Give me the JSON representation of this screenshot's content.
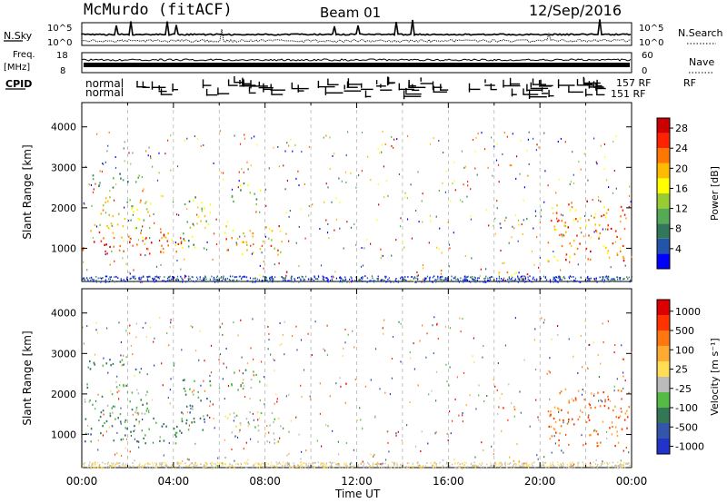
{
  "header": {
    "station": "McMurdo (fitACF)",
    "beam": "Beam 01",
    "date": "12/Sep/2016"
  },
  "strip_labels": {
    "nsky": "N.Sky",
    "nsky_ticks": [
      "10^5",
      "10^0"
    ],
    "nsearch": "N.Search",
    "nsearch_ticks": [
      "10^5",
      "10^0"
    ],
    "freq": "Freq.",
    "freq_unit": "[MHz]",
    "freq_ticks": [
      "18",
      "8"
    ],
    "nave": "Nave",
    "nave_ticks": [
      "60",
      "0"
    ],
    "cpid": "CPID",
    "cpid_values": [
      "normal",
      "normal"
    ],
    "cpid_tail": [
      "157 RF",
      "151 RF"
    ],
    "cpid_rf": "RF"
  },
  "colors": {
    "power_scale": [
      "#0000ff",
      "#2255aa",
      "#33775a",
      "#55aa55",
      "#99cc33",
      "#ffff00",
      "#ffbb00",
      "#ff7700",
      "#ff2200",
      "#cc0000"
    ],
    "velocity_scale": [
      "#2233cc",
      "#3355aa",
      "#337755",
      "#55bb44",
      "#bbbbbb",
      "#ffdd55",
      "#ffaa33",
      "#ff7711",
      "#ff3300",
      "#dd0000"
    ]
  },
  "chart_data": [
    {
      "type": "heatmap",
      "name": "power-panel",
      "title": "",
      "xlabel": "Time UT",
      "ylabel": "Slant Range [km]",
      "x_ticks": [
        "00:00",
        "04:00",
        "08:00",
        "12:00",
        "16:00",
        "20:00",
        "00:00"
      ],
      "x_range_hours": [
        0,
        24
      ],
      "y_ticks": [
        1000,
        2000,
        3000,
        4000
      ],
      "ylim": [
        180,
        4600
      ],
      "colorbar": {
        "label": "Power [dB]",
        "ticks": [
          4,
          8,
          12,
          16,
          20,
          24,
          28
        ],
        "range": [
          0,
          30
        ]
      },
      "echo_regions": [
        {
          "t0": 0.0,
          "t1": 4.3,
          "r0": 800,
          "r1": 1500,
          "level": 22
        },
        {
          "t0": 0.2,
          "t1": 3.0,
          "r0": 1500,
          "r1": 2300,
          "level": 14
        },
        {
          "t0": 0.2,
          "t1": 2.5,
          "r0": 2500,
          "r1": 2900,
          "level": 8
        },
        {
          "t0": 4.3,
          "t1": 5.6,
          "r0": 1000,
          "r1": 2400,
          "level": 12
        },
        {
          "t0": 6.2,
          "t1": 8.8,
          "r0": 800,
          "r1": 1600,
          "level": 18
        },
        {
          "t0": 6.5,
          "t1": 7.8,
          "r0": 2100,
          "r1": 2700,
          "level": 10
        },
        {
          "t0": 17.8,
          "t1": 19.6,
          "r0": 250,
          "r1": 450,
          "level": 20
        },
        {
          "t0": 18.0,
          "t1": 19.4,
          "r0": 1600,
          "r1": 1800,
          "level": 10
        },
        {
          "t0": 20.3,
          "t1": 23.9,
          "r0": 700,
          "r1": 2200,
          "level": 20
        }
      ]
    },
    {
      "type": "heatmap",
      "name": "velocity-panel",
      "title": "",
      "xlabel": "Time UT",
      "ylabel": "Slant Range [km]",
      "x_ticks": [
        "00:00",
        "04:00",
        "08:00",
        "12:00",
        "16:00",
        "20:00",
        "00:00"
      ],
      "x_range_hours": [
        0,
        24
      ],
      "y_ticks": [
        1000,
        2000,
        3000,
        4000
      ],
      "ylim": [
        180,
        4600
      ],
      "colorbar": {
        "label": "Velocity [m s⁻¹]",
        "ticks": [
          "1000",
          "500",
          "100",
          "25",
          "-25",
          "-100",
          "-500",
          "-1000"
        ]
      },
      "echo_regions": [
        {
          "t0": 0.0,
          "t1": 4.3,
          "r0": 800,
          "r1": 1500,
          "level": 2
        },
        {
          "t0": 0.2,
          "t1": 3.0,
          "r0": 1500,
          "r1": 2300,
          "level": 3
        },
        {
          "t0": 0.2,
          "t1": 2.5,
          "r0": 2500,
          "r1": 2900,
          "level": 2
        },
        {
          "t0": 4.3,
          "t1": 5.6,
          "r0": 1000,
          "r1": 2400,
          "level": 2
        },
        {
          "t0": 6.2,
          "t1": 8.8,
          "r0": 800,
          "r1": 1600,
          "level": 4
        },
        {
          "t0": 6.5,
          "t1": 7.8,
          "r0": 2100,
          "r1": 2700,
          "level": 3
        },
        {
          "t0": 17.8,
          "t1": 19.6,
          "r0": 250,
          "r1": 450,
          "level": 6
        },
        {
          "t0": 18.0,
          "t1": 19.4,
          "r0": 1600,
          "r1": 1800,
          "level": 7
        },
        {
          "t0": 20.3,
          "t1": 23.9,
          "r0": 700,
          "r1": 2200,
          "level": 7
        }
      ]
    }
  ]
}
